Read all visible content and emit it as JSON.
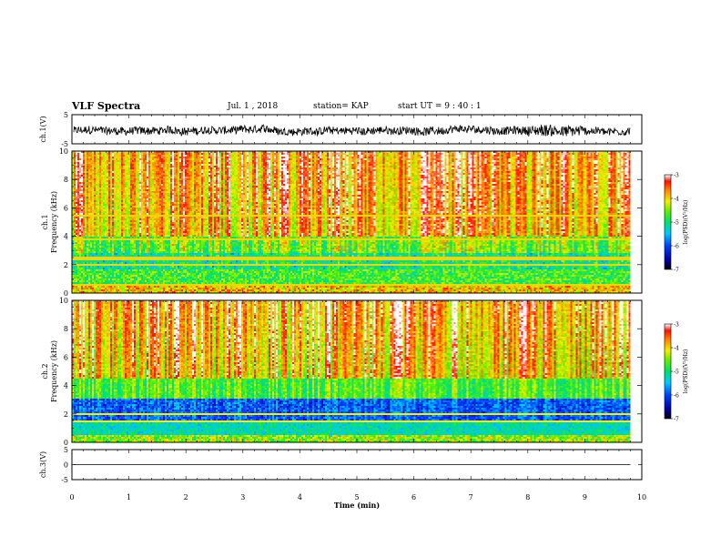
{
  "header": {
    "title": "VLF Spectra",
    "date": "Jul. 1 , 2018",
    "station": "station= KAP",
    "start": "start UT =  9 : 40 : 1"
  },
  "chart_data": [
    {
      "type": "line",
      "id": "ch1-waveform",
      "ylabel": "ch.1(V)",
      "ylim": [
        -5,
        5
      ],
      "yticks": [
        "5",
        "-5"
      ],
      "xlim": [
        0,
        10
      ],
      "color": "#000000"
    },
    {
      "type": "heatmap",
      "id": "ch1-spectrogram",
      "ylabel_line1": "ch.1",
      "ylabel_line2": "Frequency (kHz)",
      "ylim": [
        0,
        10
      ],
      "yticks": [
        "0",
        "2",
        "4",
        "6",
        "8",
        "10"
      ],
      "xlim": [
        0,
        10
      ],
      "data_end_min": 9.8,
      "colorbar": {
        "label": "log(PSD)(V²/Hz)",
        "ticks": [
          "-3",
          "-4",
          "-5",
          "-6",
          "-7"
        ],
        "range": [
          -7,
          -3
        ]
      }
    },
    {
      "type": "heatmap",
      "id": "ch2-spectrogram",
      "ylabel_line1": "ch.2",
      "ylabel_line2": "Frequency (kHz)",
      "ylim": [
        0,
        10
      ],
      "yticks": [
        "0",
        "2",
        "4",
        "6",
        "8",
        "10"
      ],
      "xlim": [
        0,
        10
      ],
      "data_end_min": 9.8,
      "colorbar": {
        "label": "log(PSD)(V²/Hz)",
        "ticks": [
          "-3",
          "-4",
          "-5",
          "-6",
          "-7"
        ],
        "range": [
          -7,
          -3
        ]
      }
    },
    {
      "type": "line",
      "id": "ch3-waveform",
      "ylabel": "ch.3(V)",
      "ylim": [
        -5,
        5
      ],
      "yticks": [
        "5",
        "0",
        "-5"
      ],
      "xlim": [
        0,
        10
      ],
      "value": 0,
      "color": "#000000"
    }
  ],
  "xaxis": {
    "label": "Time (min)",
    "ticks": [
      "0",
      "1",
      "2",
      "3",
      "4",
      "5",
      "6",
      "7",
      "8",
      "9",
      "10"
    ]
  }
}
